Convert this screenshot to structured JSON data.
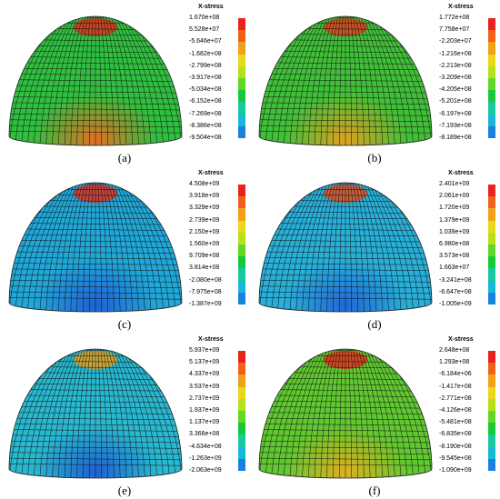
{
  "legend_title": "X-stress",
  "colors": [
    "#e8231e",
    "#f06018",
    "#f2a018",
    "#e8d818",
    "#b8e018",
    "#60d828",
    "#18c838",
    "#18c8a0",
    "#18b8d8",
    "#1880e0",
    "#2838e8"
  ],
  "panels": [
    {
      "caption": "(a)",
      "base": "#30c040",
      "hot": "#e07020",
      "top_hot": "#e0301e",
      "values": [
        "1.670e+08",
        "5.528e+07",
        "-5.646e+07",
        "-1.682e+08",
        "-2.799e+08",
        "-3.917e+08",
        "-5.034e+08",
        "-6.152e+08",
        "-7.269e+08",
        "-8.386e+08",
        "-9.504e+08"
      ]
    },
    {
      "caption": "(b)",
      "base": "#40c038",
      "hot": "#e0a020",
      "top_hot": "#e0401e",
      "values": [
        "1.772e+08",
        "7.758e+07",
        "-2.203e+07",
        "-1.216e+08",
        "-2.213e+08",
        "-3.209e+08",
        "-4.205e+08",
        "-5.201e+08",
        "-6.197e+08",
        "-7.193e+08",
        "-8.189e+08"
      ]
    },
    {
      "caption": "(c)",
      "base": "#20a8d8",
      "hot": "#2060d8",
      "top_hot": "#e0301e",
      "values": [
        "4.508e+09",
        "3.918e+09",
        "3.329e+09",
        "2.739e+09",
        "2.150e+09",
        "1.560e+09",
        "9.709e+08",
        "3.814e+08",
        "-2.080e+08",
        "-7.975e+08",
        "-1.387e+09"
      ]
    },
    {
      "caption": "(d)",
      "base": "#28b0d8",
      "hot": "#2068d8",
      "top_hot": "#e0501e",
      "values": [
        "2.401e+09",
        "2.061e+09",
        "1.720e+09",
        "1.379e+09",
        "1.039e+09",
        "6.980e+08",
        "3.573e+08",
        "1.663e+07",
        "-3.241e+08",
        "-6.647e+08",
        "-1.005e+09"
      ]
    },
    {
      "caption": "(e)",
      "base": "#28b8d0",
      "hot": "#2060d0",
      "top_hot": "#e0a020",
      "values": [
        "5.937e+09",
        "5.137e+09",
        "4.337e+09",
        "3.537e+09",
        "2.737e+09",
        "1.937e+09",
        "1.137e+09",
        "3.366e+08",
        "-4.634e+08",
        "-1.263e+09",
        "-2.063e+09"
      ]
    },
    {
      "caption": "(f)",
      "base": "#60c830",
      "hot": "#e0b020",
      "top_hot": "#e0301e",
      "values": [
        "2.648e+08",
        "1.293e+08",
        "-6.184e+06",
        "-1.417e+08",
        "-2.771e+08",
        "-4.126e+08",
        "-5.481e+08",
        "-6.835e+08",
        "-8.190e+08",
        "-9.545e+08",
        "-1.090e+09"
      ]
    }
  ]
}
